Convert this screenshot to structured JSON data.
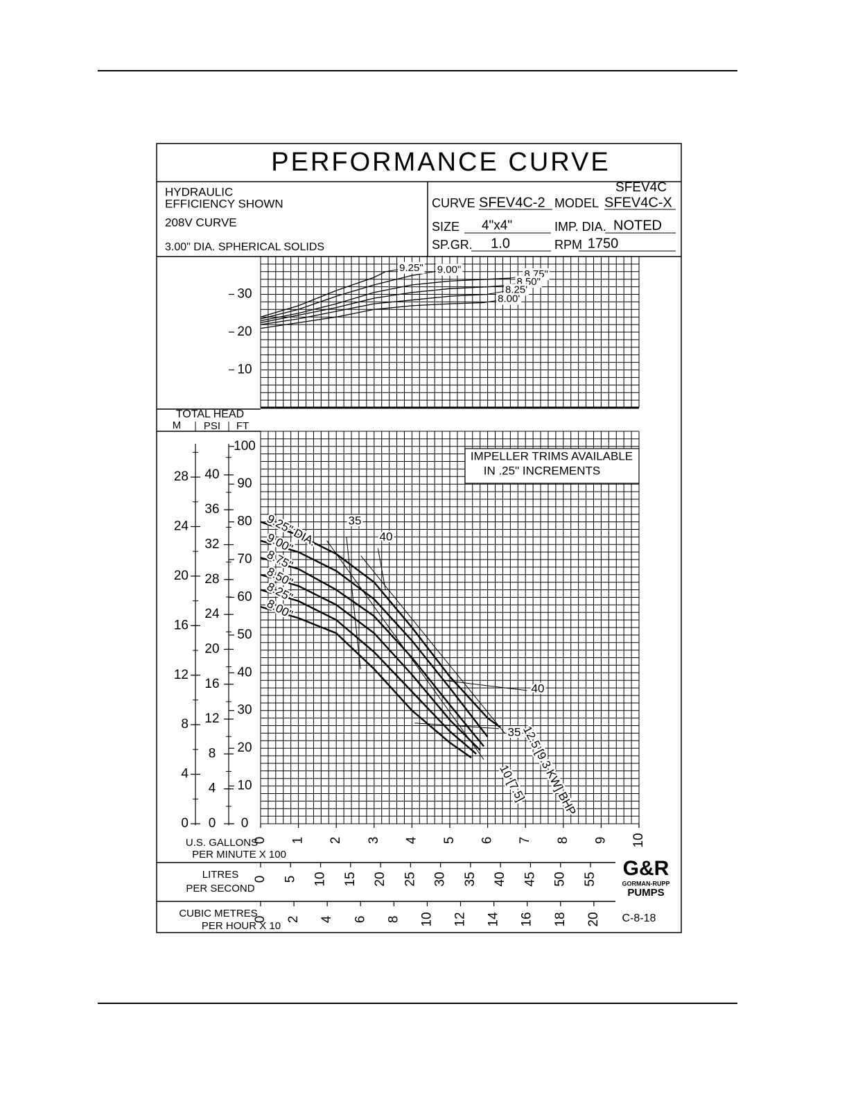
{
  "header": {
    "title": "PERFORMANCE CURVE",
    "notes": [
      "HYDRAULIC",
      "EFFICIENCY SHOWN",
      "208V CURVE",
      "3.00\" DIA. SPHERICAL SOLIDS"
    ],
    "model_top": "SFEV4C",
    "curve_label": "CURVE",
    "curve": "SFEV4C-2",
    "model_label": "MODEL",
    "model": "SFEV4C-X",
    "size_label": "SIZE",
    "size": "4\"x4\"",
    "imp_dia_label": "IMP. DIA.",
    "imp_dia": "NOTED",
    "sp_gr_label": "SP.GR.",
    "sp_gr": "1.0",
    "rpm_label": "RPM",
    "rpm": "1750"
  },
  "chart_data": [
    {
      "type": "line",
      "color": "#000000",
      "xlim": [
        0,
        10
      ],
      "xminor": 0.2,
      "ylim": [
        0,
        40
      ],
      "yticks": [
        10,
        20,
        30
      ],
      "yminor": 2,
      "series": [
        {
          "name": "9.25\"",
          "x": [
            0,
            1,
            2,
            3,
            3.3
          ],
          "values": [
            24,
            27,
            31,
            34.5,
            36
          ]
        },
        {
          "name": "9.00\"",
          "x": [
            0,
            1,
            2,
            3,
            4,
            4.3
          ],
          "values": [
            23.5,
            26,
            29.5,
            32.5,
            35,
            35.5
          ]
        },
        {
          "name": "8.75\"",
          "x": [
            0,
            1,
            2,
            3,
            4,
            5,
            6,
            6.6
          ],
          "values": [
            23,
            25,
            27.5,
            30.5,
            32.5,
            33.5,
            34,
            34.3
          ]
        },
        {
          "name": "8.50\"",
          "x": [
            0,
            1,
            2,
            3,
            4,
            5,
            6,
            6.4
          ],
          "values": [
            22.5,
            24.5,
            26.5,
            29,
            30.5,
            31.5,
            32,
            32.3
          ]
        },
        {
          "name": "8.25'",
          "x": [
            0,
            1,
            2,
            3,
            4,
            5,
            6,
            6.1
          ],
          "values": [
            22,
            23.5,
            25.5,
            27.5,
            28.5,
            29.5,
            30,
            30.2
          ]
        },
        {
          "name": "8.00'",
          "x": [
            0,
            1,
            2,
            3,
            4,
            5,
            5.9
          ],
          "values": [
            21,
            22.5,
            24,
            26,
            27,
            27.5,
            27.8
          ]
        }
      ]
    },
    {
      "type": "line",
      "color": "#000000",
      "title": "TOTAL HEAD",
      "ylabel": "FT",
      "xlabel": [
        "U.S. GALLONS",
        "PER MINUTE X 100"
      ],
      "xlim": [
        0,
        10
      ],
      "xticks": [
        0,
        1,
        2,
        3,
        4,
        5,
        6,
        7,
        8,
        9,
        10
      ],
      "xminor": 0.2,
      "ylim": [
        0,
        104
      ],
      "yticks": [
        0,
        10,
        20,
        30,
        40,
        50,
        60,
        70,
        80,
        90,
        100
      ],
      "yminor": 2,
      "m_axis": {
        "label": "M",
        "lim": [
          0,
          31.7
        ],
        "ticks": [
          0,
          4,
          8,
          12,
          16,
          20,
          24,
          28
        ],
        "minor": 2
      },
      "psi_axis": {
        "label": "PSI",
        "lim": [
          0,
          45
        ],
        "ticks": [
          0,
          4,
          8,
          12,
          16,
          20,
          24,
          28,
          32,
          36,
          40
        ],
        "minor": 2
      },
      "lps_axis": {
        "label": [
          "LITRES",
          "PER SECOND"
        ],
        "lim": [
          0,
          63.09
        ],
        "ticks": [
          0,
          5,
          10,
          15,
          20,
          25,
          30,
          35,
          40,
          45,
          50,
          55
        ]
      },
      "m3h_axis": {
        "label": [
          "CUBIC METRES",
          "PER HOUR X 10"
        ],
        "lim": [
          0,
          22.71
        ],
        "ticks": [
          0,
          2,
          4,
          6,
          8,
          10,
          12,
          14,
          16,
          18,
          20
        ]
      },
      "annotations": [
        "IMPELLER TRIMS AVAILABLE",
        "IN .25\" INCREMENTS"
      ],
      "series": [
        {
          "name": "9.25\" DIA.",
          "x": [
            0,
            1,
            2,
            3,
            4,
            5,
            6,
            6.34
          ],
          "values": [
            80,
            76.5,
            71.5,
            64,
            52,
            39,
            28,
            25.5
          ]
        },
        {
          "name": "9.00\"",
          "x": [
            0,
            1,
            2,
            3,
            4,
            5,
            6.0
          ],
          "values": [
            75,
            72,
            67,
            59.5,
            48.5,
            36,
            23
          ]
        },
        {
          "name": "8.75\"",
          "x": [
            0,
            1,
            2,
            3,
            4,
            5,
            5.9
          ],
          "values": [
            70.5,
            67.5,
            62,
            55,
            44,
            31.5,
            20.5
          ]
        },
        {
          "name": "8.50\"",
          "x": [
            0,
            1,
            2,
            3,
            4,
            5,
            5.8
          ],
          "values": [
            66,
            63,
            58,
            50.5,
            39.5,
            27.5,
            19.5
          ]
        },
        {
          "name": "8.25\"",
          "x": [
            0,
            1,
            2,
            3,
            4,
            5,
            5.7
          ],
          "values": [
            62,
            59,
            54,
            45.5,
            35,
            24.5,
            18.5
          ]
        },
        {
          "name": "8.00\"",
          "x": [
            0,
            1,
            2,
            3,
            4,
            5,
            5.57
          ],
          "values": [
            57.5,
            54.5,
            50.5,
            41,
            30,
            21.5,
            17.5
          ]
        }
      ],
      "efficiency_lines": [
        {
          "name": "35",
          "x": [
            2.27,
            2.64
          ],
          "values": [
            76,
            41
          ]
        },
        {
          "name": "40",
          "x": [
            3.1,
            3.3
          ],
          "values": [
            73,
            62
          ]
        },
        {
          "name": "40",
          "x": [
            4.84,
            7.04
          ],
          "values": [
            38,
            35.3
          ]
        },
        {
          "name": "35",
          "x": [
            4.07,
            6.3
          ],
          "values": [
            26.7,
            25.2
          ]
        }
      ],
      "bhp_lines": [
        {
          "name": "12.5 [9.3 KW] BHP",
          "x": [
            2.65,
            6.45
          ],
          "values": [
            71,
            24
          ]
        },
        {
          "name": "10 [7.5]",
          "x": [
            1.75,
            5.9
          ],
          "values": [
            75,
            17
          ]
        }
      ]
    }
  ],
  "footer": {
    "logo": "G&R",
    "company": "GORMAN-RUPP",
    "brand": "PUMPS",
    "code": "C-8-18"
  }
}
